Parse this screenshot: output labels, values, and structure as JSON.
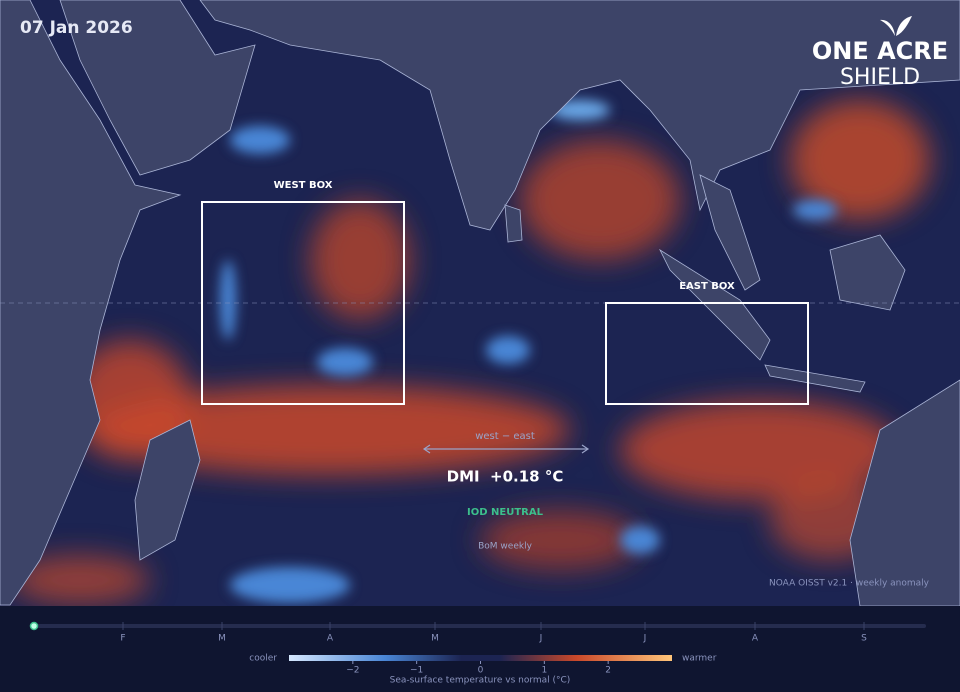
{
  "header": {
    "date": "07 Jan 2026",
    "brand": "ONE ACRE",
    "brand_sub": "SHIELD"
  },
  "map": {
    "boxes": [
      {
        "label": "WEST BOX"
      },
      {
        "label": "EAST BOX"
      }
    ],
    "dmi": {
      "caption": "west − east",
      "value": "DMI  +0.18 °C",
      "status": "IOD NEUTRAL",
      "source": "BoM weekly"
    },
    "attribution": "NOAA OISST v2.1 · weekly anomaly"
  },
  "timeline": {
    "months": [
      "F",
      "M",
      "A",
      "M",
      "J",
      "J",
      "A",
      "S"
    ]
  },
  "legend": {
    "low": "cooler",
    "high": "warmer",
    "range": [
      -3,
      3
    ],
    "ticks": [
      {
        "value": -2,
        "label": "−2"
      },
      {
        "value": -1,
        "label": "−1"
      },
      0,
      1,
      2
    ],
    "caption": "Sea-surface temperature vs normal (°C)"
  }
}
